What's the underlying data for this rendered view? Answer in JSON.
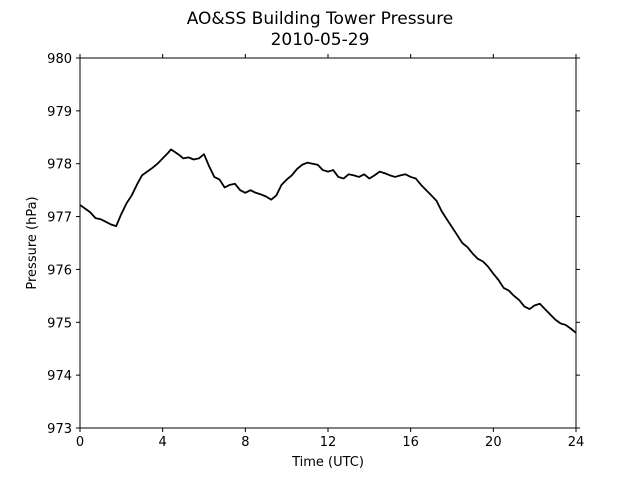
{
  "chart_data": {
    "type": "line",
    "title": "AO&SS Building Tower Pressure",
    "subtitle": "2010-05-29",
    "xlabel": "Time (UTC)",
    "ylabel": "Pressure (hPa)",
    "xlim": [
      0,
      24
    ],
    "ylim": [
      973,
      980
    ],
    "xticks": [
      0,
      4,
      8,
      12,
      16,
      20,
      24
    ],
    "yticks": [
      973,
      974,
      975,
      976,
      977,
      978,
      979,
      980
    ],
    "grid": false,
    "line_color": "#000000",
    "series": [
      {
        "x": [
          0,
          0.25,
          0.5,
          0.75,
          1.0,
          1.25,
          1.5,
          1.75,
          2.0,
          2.25,
          2.5,
          2.75,
          3.0,
          3.25,
          3.5,
          3.75,
          4.0,
          4.25,
          4.4,
          4.6,
          4.85,
          5.0,
          5.25,
          5.5,
          5.75,
          6.0,
          6.25,
          6.5,
          6.75,
          7.0,
          7.25,
          7.5,
          7.75,
          8.0,
          8.25,
          8.5,
          8.75,
          9.0,
          9.25,
          9.5,
          9.75,
          10.0,
          10.25,
          10.5,
          10.75,
          11.0,
          11.25,
          11.5,
          11.75,
          12.0,
          12.25,
          12.5,
          12.75,
          13.0,
          13.25,
          13.5,
          13.75,
          14.0,
          14.25,
          14.5,
          14.75,
          15.0,
          15.25,
          15.5,
          15.75,
          16.0,
          16.25,
          16.5,
          16.75,
          17.0,
          17.25,
          17.5,
          17.75,
          18.0,
          18.25,
          18.5,
          18.75,
          19.0,
          19.25,
          19.5,
          19.75,
          20.0,
          20.25,
          20.5,
          20.75,
          21.0,
          21.25,
          21.5,
          21.75,
          22.0,
          22.25,
          22.5,
          22.75,
          23.0,
          23.25,
          23.5,
          23.75,
          24.0
        ],
        "y": [
          977.22,
          977.15,
          977.08,
          976.97,
          976.95,
          976.9,
          976.85,
          976.82,
          977.05,
          977.25,
          977.4,
          977.6,
          977.78,
          977.85,
          977.92,
          978.0,
          978.1,
          978.2,
          978.27,
          978.22,
          978.15,
          978.1,
          978.12,
          978.08,
          978.1,
          978.18,
          977.95,
          977.75,
          977.7,
          977.55,
          977.6,
          977.62,
          977.5,
          977.45,
          977.5,
          977.45,
          977.42,
          977.38,
          977.32,
          977.4,
          977.6,
          977.7,
          977.78,
          977.9,
          977.98,
          978.02,
          978.0,
          977.98,
          977.88,
          977.85,
          977.88,
          977.75,
          977.72,
          977.8,
          977.78,
          977.75,
          977.8,
          977.72,
          977.78,
          977.85,
          977.82,
          977.78,
          977.75,
          977.78,
          977.8,
          977.75,
          977.72,
          977.6,
          977.5,
          977.4,
          977.3,
          977.1,
          976.95,
          976.8,
          976.65,
          976.5,
          976.42,
          976.3,
          976.2,
          976.15,
          976.05,
          975.92,
          975.8,
          975.65,
          975.6,
          975.5,
          975.42,
          975.3,
          975.25,
          975.32,
          975.35,
          975.25,
          975.15,
          975.05,
          974.98,
          974.95,
          974.88,
          974.8
        ]
      }
    ]
  }
}
